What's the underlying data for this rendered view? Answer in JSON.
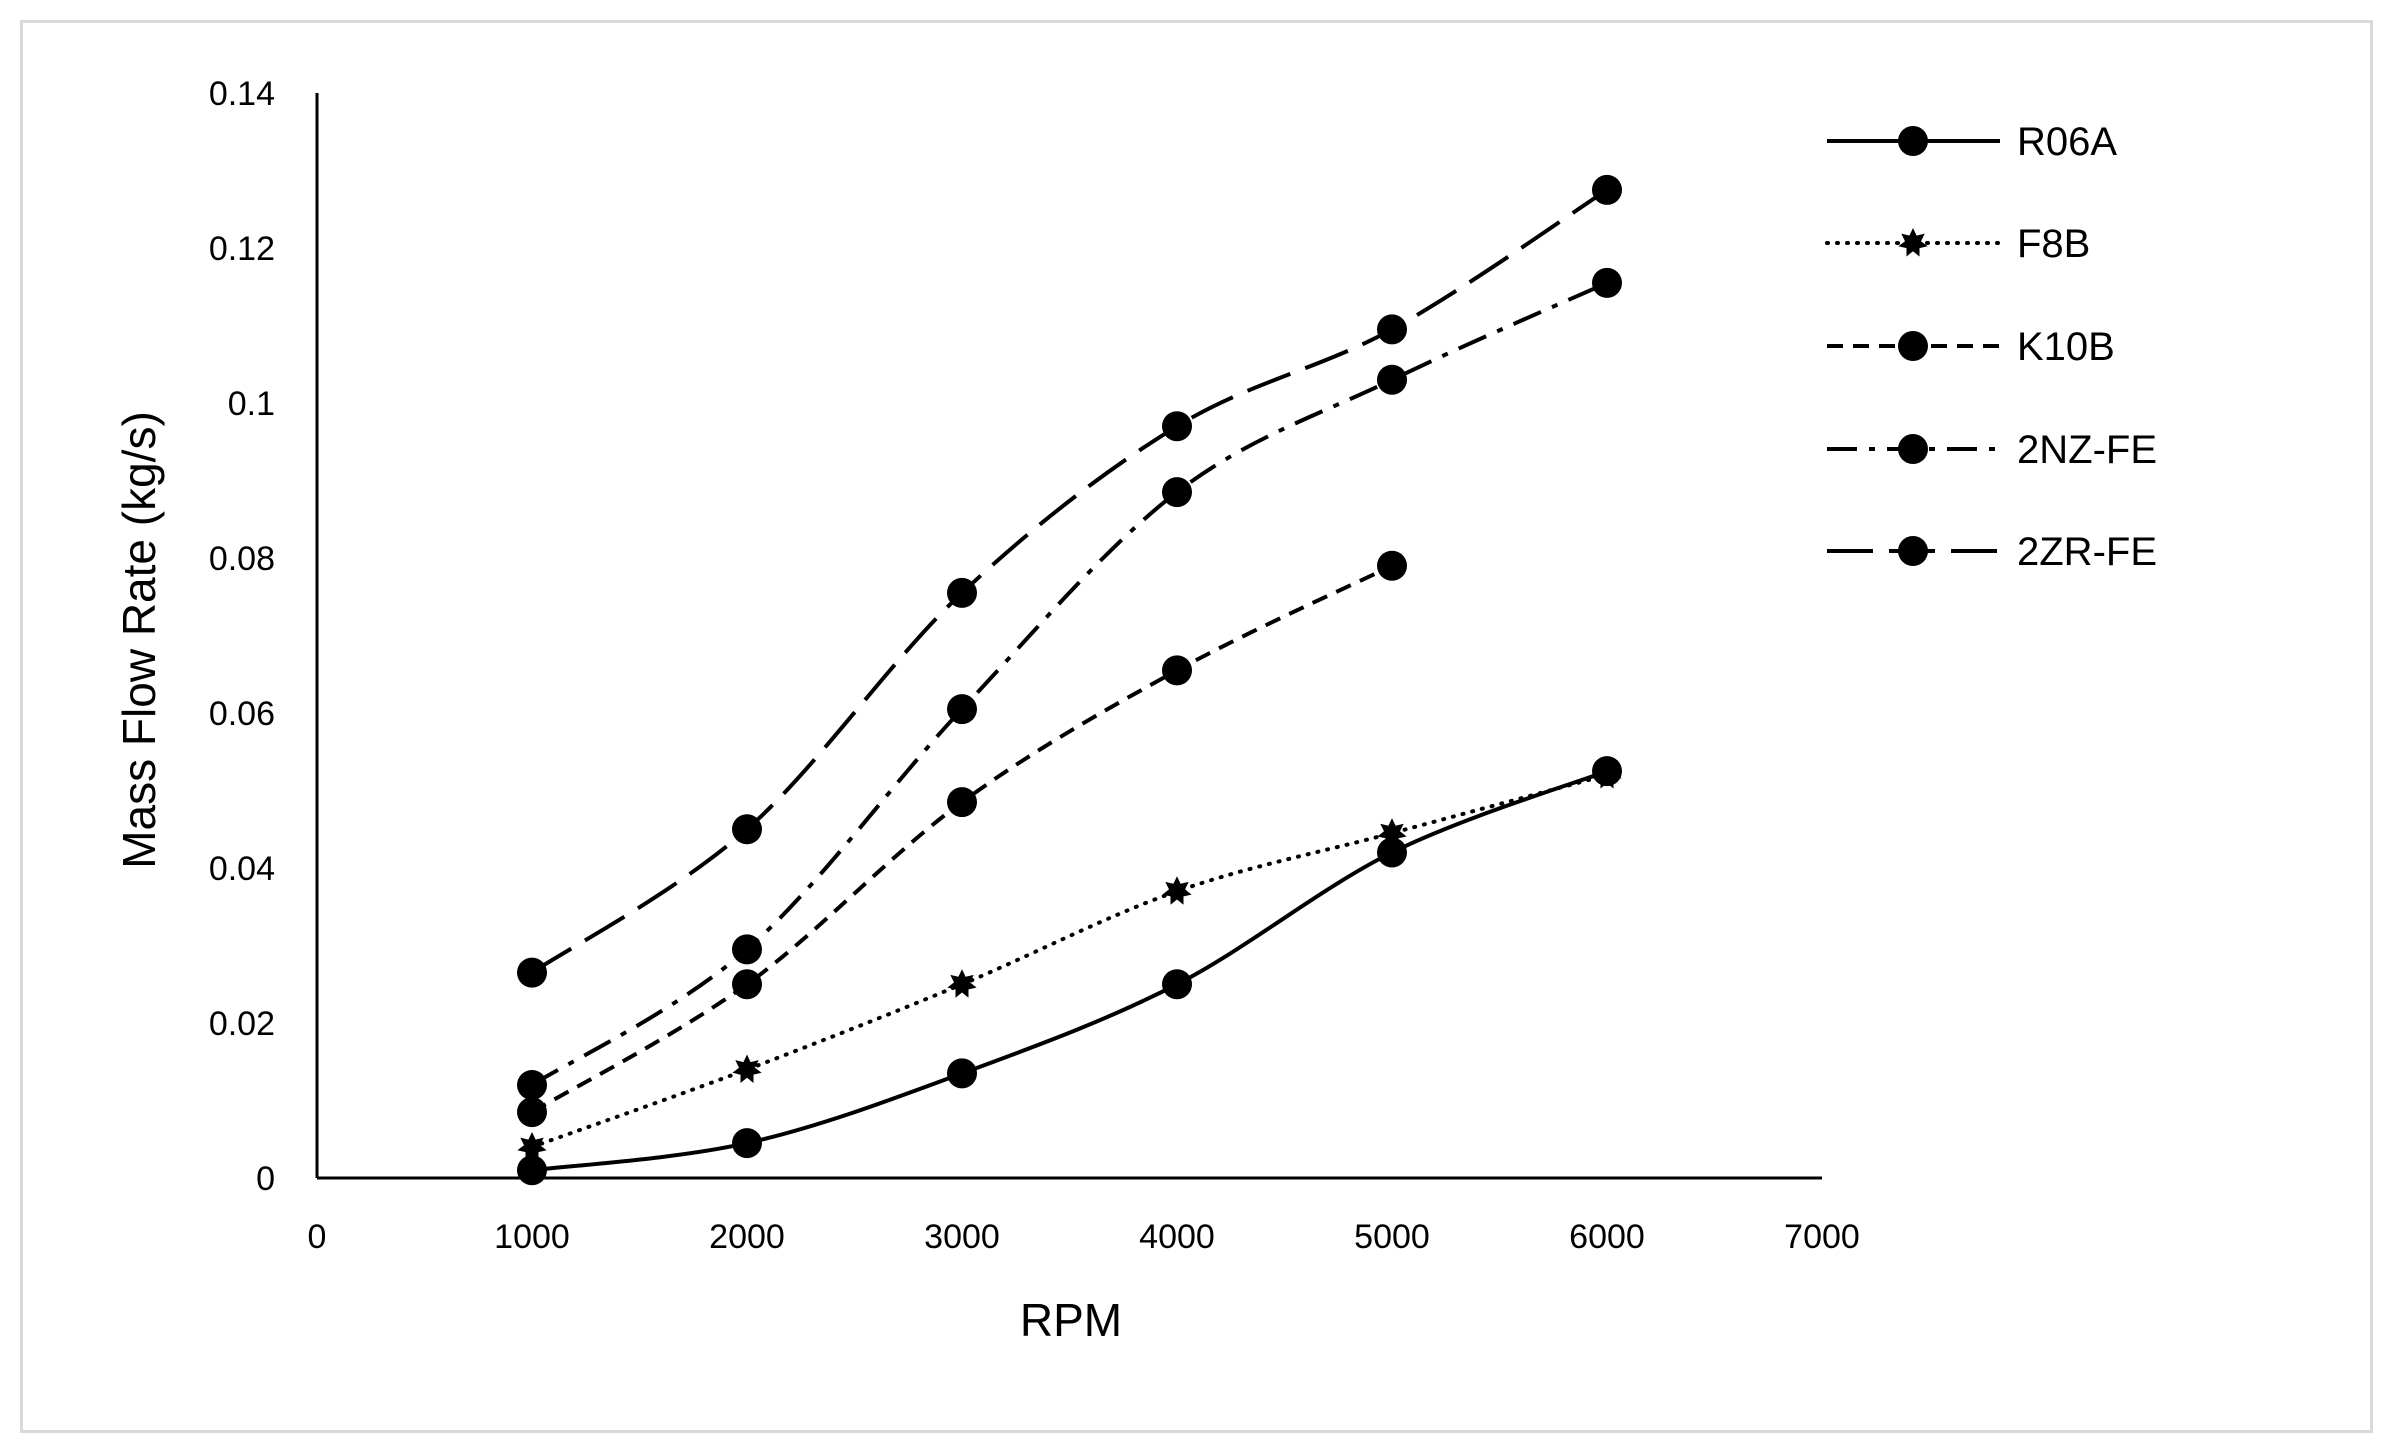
{
  "chart_data": {
    "type": "line",
    "title": "",
    "xlabel": "RPM",
    "ylabel": "Mass Flow Rate (kg/s)",
    "xlim": [
      0,
      7000
    ],
    "ylim": [
      0,
      0.14
    ],
    "xticks": [
      0,
      1000,
      2000,
      3000,
      4000,
      5000,
      6000,
      7000
    ],
    "yticks": [
      0,
      0.02,
      0.04,
      0.06,
      0.08,
      0.1,
      0.12,
      0.14
    ],
    "xtick_labels": [
      "0",
      "1000",
      "2000",
      "3000",
      "4000",
      "5000",
      "6000",
      "7000"
    ],
    "ytick_labels": [
      "0",
      "0.02",
      "0.04",
      "0.06",
      "0.08",
      "0.1",
      "0.12",
      "0.14"
    ],
    "grid": false,
    "legend_position": "top-right",
    "series": [
      {
        "name": "R06A",
        "line_style": "solid",
        "marker": "circle",
        "x": [
          1000,
          2000,
          3000,
          4000,
          5000,
          6000
        ],
        "y": [
          0.001,
          0.0045,
          0.0135,
          0.025,
          0.042,
          0.0525
        ]
      },
      {
        "name": "F8B",
        "line_style": "dotted",
        "marker": "star",
        "x": [
          1000,
          2000,
          3000,
          4000,
          5000,
          6000
        ],
        "y": [
          0.004,
          0.014,
          0.025,
          0.037,
          0.0445,
          0.052
        ]
      },
      {
        "name": "K10B",
        "line_style": "dashed",
        "marker": "circle",
        "x": [
          1000,
          2000,
          3000,
          4000,
          5000
        ],
        "y": [
          0.0085,
          0.025,
          0.0485,
          0.0655,
          0.079
        ]
      },
      {
        "name": "2NZ-FE",
        "line_style": "dash-dot",
        "marker": "circle",
        "x": [
          1000,
          2000,
          3000,
          4000,
          5000,
          6000
        ],
        "y": [
          0.012,
          0.0295,
          0.0605,
          0.0885,
          0.103,
          0.1155
        ]
      },
      {
        "name": "2ZR-FE",
        "line_style": "long-dash",
        "marker": "circle",
        "x": [
          1000,
          2000,
          3000,
          4000,
          5000,
          6000
        ],
        "y": [
          0.0265,
          0.045,
          0.0755,
          0.097,
          0.1095,
          0.1275
        ]
      }
    ]
  }
}
